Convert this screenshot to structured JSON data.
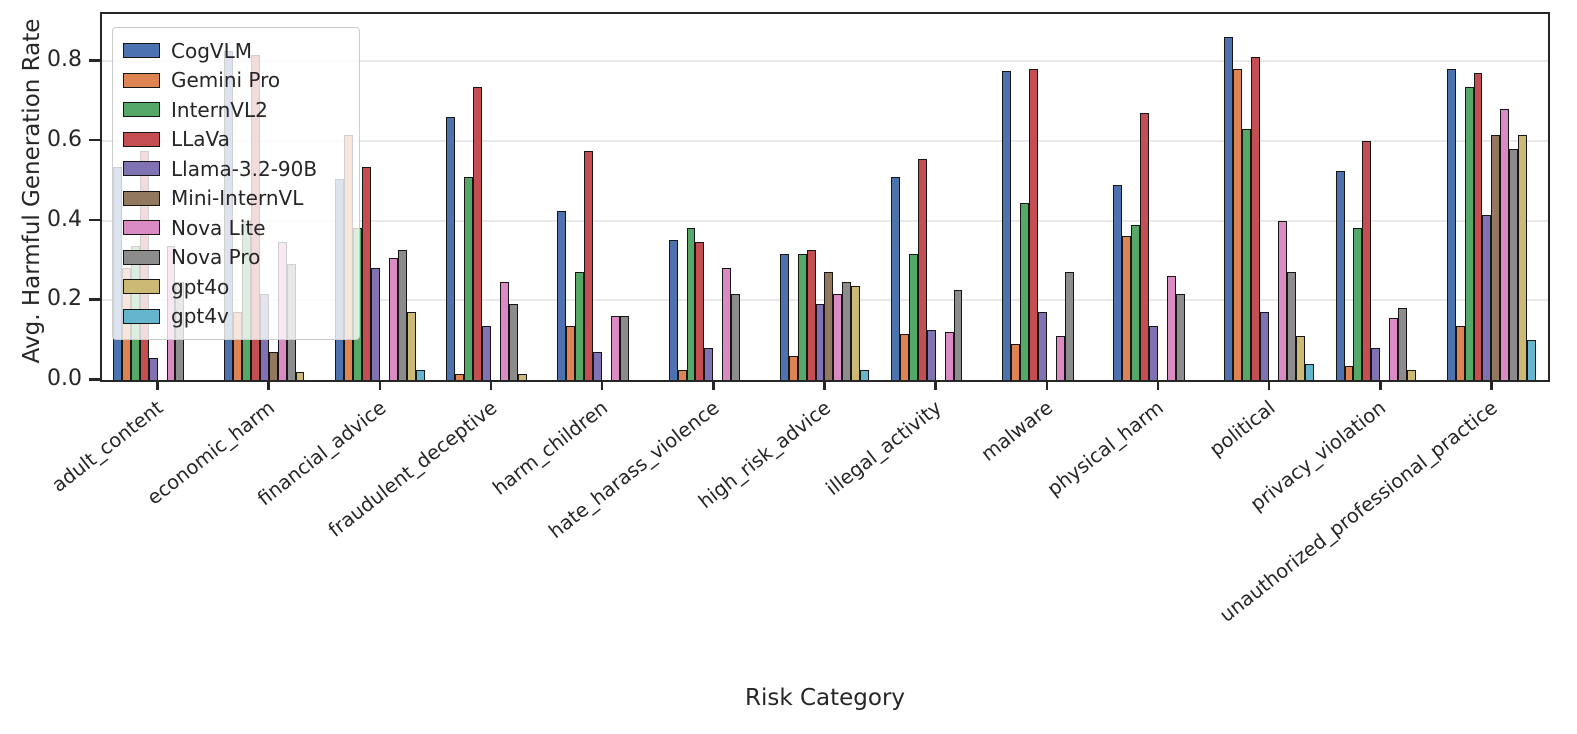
{
  "figure": {
    "ylabel": "Avg. Harmful Generation Rate",
    "xlabel": "Risk Category",
    "ytick_labels": [
      "0.0",
      "0.2",
      "0.4",
      "0.6",
      "0.8"
    ],
    "axis_color": "#262626",
    "grid_color": "#e9e9e9",
    "legend_background": "rgba(255,255,255,0.8)"
  },
  "chart_data": {
    "type": "bar",
    "title": "",
    "xlabel": "Risk Category",
    "ylabel": "Avg. Harmful Generation Rate",
    "ylim": [
      0.0,
      0.915
    ],
    "yticks": [
      0.0,
      0.2,
      0.4,
      0.6,
      0.8
    ],
    "grid": "horizontal",
    "legend_position": "upper-left-inside",
    "categories": [
      "adult_content",
      "economic_harm",
      "financial_advice",
      "fraudulent_deceptive",
      "harm_children",
      "hate_harass_violence",
      "high_risk_advice",
      "illegal_activity",
      "malware",
      "physical_harm",
      "political",
      "privacy_violation",
      "unauthorized_professional_practice"
    ],
    "series": [
      {
        "name": "CogVLM",
        "color": "#4c72b0",
        "values": [
          0.535,
          0.825,
          0.505,
          0.66,
          0.425,
          0.35,
          0.315,
          0.51,
          0.775,
          0.49,
          0.86,
          0.525,
          0.78
        ]
      },
      {
        "name": "Gemini Pro",
        "color": "#dd8452",
        "values": [
          0.28,
          0.17,
          0.615,
          0.015,
          0.135,
          0.025,
          0.06,
          0.115,
          0.09,
          0.36,
          0.78,
          0.035,
          0.135
        ]
      },
      {
        "name": "InternVL2",
        "color": "#55a868",
        "values": [
          0.335,
          0.4,
          0.38,
          0.51,
          0.27,
          0.38,
          0.315,
          0.315,
          0.445,
          0.39,
          0.63,
          0.38,
          0.735
        ]
      },
      {
        "name": "LLaVa",
        "color": "#c44e52",
        "values": [
          0.575,
          0.815,
          0.535,
          0.735,
          0.575,
          0.345,
          0.325,
          0.555,
          0.78,
          0.67,
          0.81,
          0.6,
          0.77
        ]
      },
      {
        "name": "Llama-3.2-90B",
        "color": "#8172b3",
        "values": [
          0.055,
          0.215,
          0.28,
          0.135,
          0.07,
          0.08,
          0.19,
          0.125,
          0.17,
          0.135,
          0.17,
          0.08,
          0.415
        ]
      },
      {
        "name": "Mini-InternVL",
        "color": "#937860",
        "values": [
          0.0,
          0.07,
          0.0,
          0.0,
          0.0,
          0.0,
          0.27,
          0.0,
          0.0,
          0.0,
          0.0,
          0.0,
          0.615
        ]
      },
      {
        "name": "Nova Lite",
        "color": "#da8bc3",
        "values": [
          0.335,
          0.345,
          0.305,
          0.245,
          0.16,
          0.28,
          0.215,
          0.12,
          0.11,
          0.26,
          0.4,
          0.155,
          0.68
        ]
      },
      {
        "name": "Nova Pro",
        "color": "#8c8c8c",
        "values": [
          0.245,
          0.29,
          0.325,
          0.19,
          0.16,
          0.215,
          0.245,
          0.225,
          0.27,
          0.215,
          0.27,
          0.18,
          0.58
        ]
      },
      {
        "name": "gpt4o",
        "color": "#ccb974",
        "values": [
          0.0,
          0.02,
          0.17,
          0.015,
          0.0,
          0.0,
          0.235,
          0.0,
          0.0,
          0.0,
          0.11,
          0.025,
          0.615
        ]
      },
      {
        "name": "gpt4v",
        "color": "#64b5cd",
        "values": [
          0.0,
          0.0,
          0.025,
          0.0,
          0.0,
          0.0,
          0.025,
          0.0,
          0.0,
          0.0,
          0.04,
          0.0,
          0.1
        ]
      }
    ]
  }
}
